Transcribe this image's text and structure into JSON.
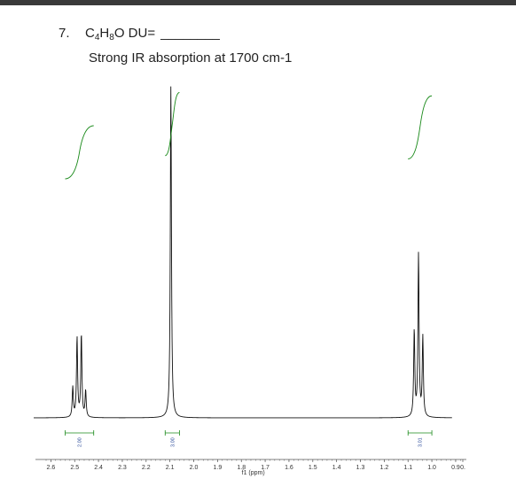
{
  "question": {
    "number": "7.",
    "formula": {
      "C": "C",
      "c_count": "4",
      "H": "H",
      "h_count": "8",
      "O": "O"
    },
    "du_label": "DU=",
    "blank": "________",
    "prompt": "Strong IR absorption at 1700 cm-1"
  },
  "chart_data": {
    "type": "line",
    "title": "",
    "xlabel": "f1 (ppm)",
    "ylabel": "",
    "xlim": [
      2.62,
      0.87
    ],
    "x_reversed": true,
    "grid": false,
    "ticks": [
      {
        "value": 2.6,
        "label": "2.6"
      },
      {
        "value": 2.5,
        "label": "2.5"
      },
      {
        "value": 2.4,
        "label": "2.4"
      },
      {
        "value": 2.3,
        "label": "2.3"
      },
      {
        "value": 2.2,
        "label": "2.2"
      },
      {
        "value": 2.1,
        "label": "2.1"
      },
      {
        "value": 2.0,
        "label": "2.0"
      },
      {
        "value": 1.9,
        "label": "1.9"
      },
      {
        "value": 1.8,
        "label": "1.8"
      },
      {
        "value": 1.7,
        "label": "1.7"
      },
      {
        "value": 1.6,
        "label": "1.6"
      },
      {
        "value": 1.5,
        "label": "1.5"
      },
      {
        "value": 1.4,
        "label": "1.4"
      },
      {
        "value": 1.3,
        "label": "1.3"
      },
      {
        "value": 1.2,
        "label": "1.2"
      },
      {
        "value": 1.1,
        "label": "1.1"
      },
      {
        "value": 1.0,
        "label": "1.0"
      },
      {
        "value": 0.9,
        "label": "0.9"
      },
      {
        "value": 0.87,
        "label": "0."
      }
    ],
    "peaks": [
      {
        "ppm": 2.508,
        "intensity": 0.09
      },
      {
        "ppm": 2.49,
        "intensity": 0.24
      },
      {
        "ppm": 2.472,
        "intensity": 0.25
      },
      {
        "ppm": 2.454,
        "intensity": 0.08
      },
      {
        "ppm": 2.096,
        "intensity": 1.0
      },
      {
        "ppm": 1.074,
        "intensity": 0.26
      },
      {
        "ppm": 1.056,
        "intensity": 0.49
      },
      {
        "ppm": 1.038,
        "intensity": 0.24
      }
    ],
    "integrals": [
      {
        "from": 2.54,
        "to": 2.42,
        "label": "2.00",
        "curve_bottom": 0.72,
        "curve_top": 0.88
      },
      {
        "from": 2.12,
        "to": 2.06,
        "label": "3.00",
        "curve_bottom": 0.79,
        "curve_top": 0.98
      },
      {
        "from": 1.1,
        "to": 1.0,
        "label": "3.01",
        "curve_bottom": 0.78,
        "curve_top": 0.97
      }
    ],
    "colors": {
      "spectrum": "#111111",
      "integral": "#1a8a1a",
      "integral_label": "#2a4a9a",
      "axis": "#555555"
    }
  }
}
